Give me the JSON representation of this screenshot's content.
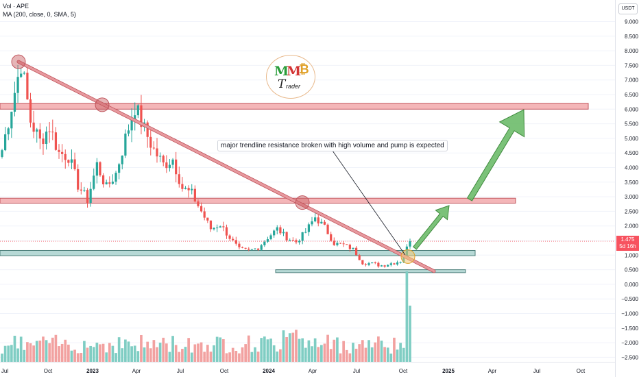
{
  "legend": {
    "line1": "Vol · APE",
    "line2": "MA (200, close, 0, SMA, 5)"
  },
  "price_axis": {
    "currency": "USDT",
    "ticks": [
      "9.000",
      "8.500",
      "8.000",
      "7.500",
      "7.000",
      "6.500",
      "6.000",
      "5.500",
      "5.000",
      "4.500",
      "4.000",
      "3.500",
      "3.000",
      "2.500",
      "2.000",
      "1.500",
      "1.000",
      "0.500",
      "0.000",
      "−0.500",
      "−1.000",
      "−1.500",
      "−2.000",
      "−2.500"
    ],
    "last_price": "1.475",
    "countdown": "5d 16h"
  },
  "time_axis": {
    "labels": [
      "Jul",
      "Oct",
      "2023",
      "Apr",
      "Jul",
      "Oct",
      "2024",
      "Apr",
      "Jul",
      "Oct",
      "2025",
      "Apr",
      "Jul",
      "Oct"
    ]
  },
  "annotation": {
    "text": "major trendline resistance broken with high volume and pump is expected"
  },
  "logo": {
    "m1": "M",
    "m2": "M",
    "coin": "₿",
    "t": "T",
    "word": "rader"
  },
  "colors": {
    "up": "#26a69a",
    "down": "#ef5350",
    "vol_up": "#7fcdc3",
    "vol_down": "#f2a1a0",
    "resistance_zone": "#f4b6b8",
    "support_zone": "#b7d9d6",
    "trendline": "#e7999e",
    "arrow": "#6dbb6a"
  },
  "chart_data": {
    "type": "candlestick",
    "symbol": "APE",
    "quote": "USDT",
    "interval": "1W",
    "ylim": [
      -2.75,
      9.25
    ],
    "last_price": 1.475,
    "horizontal_zones": [
      {
        "low": 6.0,
        "high": 6.2
      },
      {
        "low": 2.78,
        "high": 2.95
      },
      {
        "low": 0.98,
        "high": 1.16
      },
      {
        "low": 0.4,
        "high": 0.5
      }
    ],
    "trendline": {
      "from": [
        "2022-06",
        7.6
      ],
      "to": [
        "2024-10",
        0.45
      ]
    },
    "targets": [
      2.95,
      6.0
    ],
    "close_path": [
      [
        "2022-05",
        4.6
      ],
      [
        "2022-06",
        6.1
      ],
      [
        "2022-06",
        7.6
      ],
      [
        "2022-07",
        5.6
      ],
      [
        "2022-07",
        4.9
      ],
      [
        "2022-08",
        5.4
      ],
      [
        "2022-09",
        4.5
      ],
      [
        "2022-09",
        4.4
      ],
      [
        "2022-10",
        3.4
      ],
      [
        "2022-11",
        2.9
      ],
      [
        "2022-11",
        4.1
      ],
      [
        "2022-12",
        3.3
      ],
      [
        "2022-12",
        3.8
      ],
      [
        "2023-01",
        5.0
      ],
      [
        "2023-01",
        6.1
      ],
      [
        "2023-02",
        5.3
      ],
      [
        "2023-03",
        4.6
      ],
      [
        "2023-03",
        4.1
      ],
      [
        "2023-04",
        4.3
      ],
      [
        "2023-05",
        3.3
      ],
      [
        "2023-05",
        3.1
      ],
      [
        "2023-06",
        2.5
      ],
      [
        "2023-07",
        1.9
      ],
      [
        "2023-07",
        2.05
      ],
      [
        "2023-08",
        1.6
      ],
      [
        "2023-09",
        1.2
      ],
      [
        "2023-10",
        1.15
      ],
      [
        "2023-10",
        1.25
      ],
      [
        "2023-11",
        1.6
      ],
      [
        "2023-12",
        1.9
      ],
      [
        "2023-12",
        1.6
      ],
      [
        "2024-01",
        1.45
      ],
      [
        "2024-02",
        1.8
      ],
      [
        "2024-03",
        2.3
      ],
      [
        "2024-03",
        1.95
      ],
      [
        "2024-04",
        1.4
      ],
      [
        "2024-05",
        1.35
      ],
      [
        "2024-06",
        1.2
      ],
      [
        "2024-07",
        0.75
      ],
      [
        "2024-08",
        0.7
      ],
      [
        "2024-08",
        0.65
      ],
      [
        "2024-09",
        0.72
      ],
      [
        "2024-10",
        0.8
      ],
      [
        "2024-10",
        1.475
      ]
    ]
  }
}
